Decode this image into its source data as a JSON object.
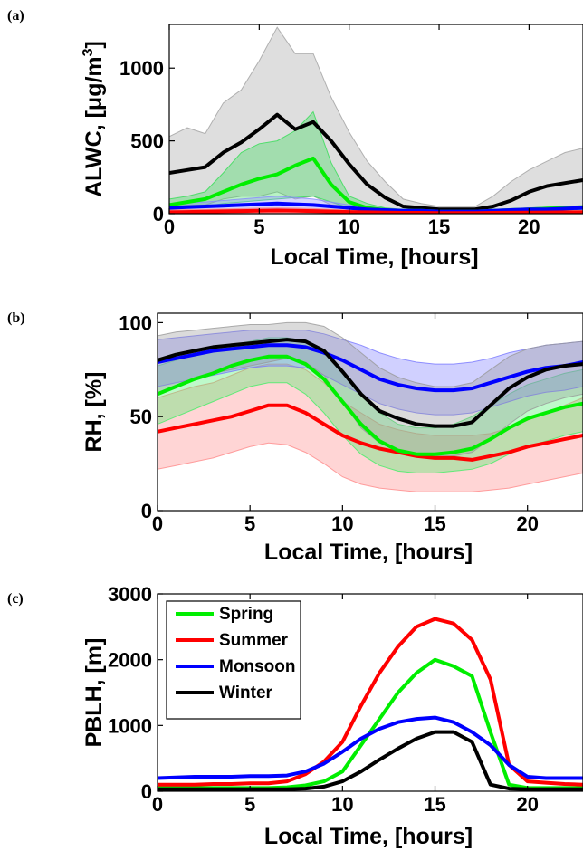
{
  "chart_data": [
    {
      "type": "line",
      "panel_label": "(a)",
      "xlabel": "Local Time, [hours]",
      "ylabel": "ALWC, [μg/m³]",
      "ylabel_main": "ALWC, [μg/m",
      "ylabel_sup": "3",
      "ylabel_end": "]",
      "xlim": [
        0,
        23
      ],
      "ylim": [
        0,
        1300
      ],
      "xticks": [
        0,
        5,
        10,
        15,
        20
      ],
      "yticks": [
        0,
        500,
        1000
      ],
      "grid": false,
      "series": [
        {
          "color": "#000000",
          "band_color": "#a0a0a0",
          "x": [
            0,
            1,
            2,
            3,
            4,
            5,
            6,
            7,
            8,
            9,
            10,
            11,
            12,
            13,
            14,
            15,
            16,
            17,
            18,
            19,
            20,
            21,
            22,
            23
          ],
          "values": [
            280,
            300,
            320,
            420,
            490,
            580,
            680,
            580,
            630,
            500,
            340,
            200,
            110,
            50,
            40,
            30,
            30,
            30,
            50,
            90,
            150,
            190,
            210,
            230
          ],
          "upper": [
            530,
            590,
            550,
            760,
            850,
            1050,
            1280,
            1100,
            1100,
            800,
            560,
            360,
            220,
            100,
            70,
            50,
            50,
            50,
            120,
            220,
            300,
            360,
            420,
            450
          ],
          "lower": [
            60,
            60,
            60,
            100,
            120,
            120,
            150,
            100,
            120,
            60,
            30,
            20,
            10,
            10,
            10,
            5,
            5,
            5,
            10,
            10,
            20,
            30,
            40,
            50
          ]
        },
        {
          "color": "#00ee00",
          "band_color": "#33dd55",
          "x": [
            0,
            1,
            2,
            3,
            4,
            5,
            6,
            7,
            8,
            9,
            10,
            11,
            12,
            13,
            14,
            15,
            16,
            17,
            18,
            19,
            20,
            21,
            22,
            23
          ],
          "values": [
            60,
            80,
            100,
            150,
            200,
            240,
            270,
            330,
            380,
            200,
            80,
            40,
            25,
            20,
            20,
            15,
            15,
            15,
            20,
            25,
            30,
            35,
            40,
            45
          ],
          "upper": [
            100,
            120,
            150,
            280,
            420,
            480,
            500,
            570,
            700,
            350,
            120,
            70,
            40,
            30,
            30,
            25,
            25,
            25,
            30,
            35,
            40,
            45,
            50,
            55
          ],
          "lower": [
            30,
            40,
            50,
            70,
            80,
            90,
            100,
            110,
            120,
            80,
            40,
            20,
            15,
            10,
            10,
            10,
            10,
            10,
            10,
            15,
            15,
            20,
            25,
            30
          ]
        },
        {
          "color": "#0000ff",
          "band_color": "#8888ff",
          "x": [
            0,
            1,
            2,
            3,
            4,
            5,
            6,
            7,
            8,
            9,
            10,
            11,
            12,
            13,
            14,
            15,
            16,
            17,
            18,
            19,
            20,
            21,
            22,
            23
          ],
          "values": [
            40,
            45,
            50,
            55,
            60,
            65,
            70,
            65,
            60,
            50,
            40,
            30,
            25,
            20,
            20,
            15,
            15,
            15,
            20,
            25,
            30,
            30,
            35,
            40
          ],
          "upper": [
            70,
            75,
            80,
            90,
            100,
            110,
            120,
            110,
            100,
            80,
            60,
            45,
            35,
            30,
            30,
            25,
            25,
            25,
            30,
            35,
            40,
            45,
            50,
            55
          ],
          "lower": [
            15,
            20,
            25,
            25,
            30,
            30,
            35,
            30,
            30,
            25,
            20,
            15,
            10,
            10,
            10,
            8,
            8,
            8,
            10,
            10,
            15,
            15,
            15,
            20
          ]
        },
        {
          "color": "#ff0000",
          "band_color": "#ff8888",
          "x": [
            0,
            1,
            2,
            3,
            4,
            5,
            6,
            7,
            8,
            9,
            10,
            11,
            12,
            13,
            14,
            15,
            16,
            17,
            18,
            19,
            20,
            21,
            22,
            23
          ],
          "values": [
            10,
            12,
            14,
            16,
            18,
            20,
            22,
            20,
            18,
            15,
            12,
            10,
            8,
            6,
            6,
            5,
            5,
            5,
            6,
            7,
            8,
            9,
            10,
            10
          ],
          "upper": [
            25,
            28,
            30,
            32,
            35,
            38,
            40,
            38,
            35,
            30,
            25,
            20,
            16,
            12,
            12,
            10,
            10,
            10,
            12,
            14,
            16,
            18,
            20,
            22
          ],
          "lower": [
            2,
            2,
            2,
            3,
            3,
            3,
            4,
            3,
            3,
            2,
            2,
            2,
            1,
            1,
            1,
            1,
            1,
            1,
            1,
            1,
            1,
            1,
            2,
            2
          ]
        }
      ]
    },
    {
      "type": "line",
      "panel_label": "(b)",
      "xlabel": "Local Time, [hours]",
      "ylabel": "RH, [%]",
      "xlim": [
        0,
        23
      ],
      "ylim": [
        0,
        105
      ],
      "xticks": [
        0,
        5,
        10,
        15,
        20
      ],
      "yticks": [
        0,
        50,
        100
      ],
      "grid": false,
      "series": [
        {
          "color": "#ff0000",
          "band_color": "#ff8888",
          "x": [
            0,
            1,
            2,
            3,
            4,
            5,
            6,
            7,
            8,
            9,
            10,
            11,
            12,
            13,
            14,
            15,
            16,
            17,
            18,
            19,
            20,
            21,
            22,
            23
          ],
          "values": [
            42,
            44,
            46,
            48,
            50,
            53,
            56,
            56,
            52,
            46,
            40,
            36,
            33,
            31,
            29,
            28,
            28,
            27,
            29,
            31,
            34,
            36,
            38,
            40
          ],
          "upper": [
            60,
            63,
            66,
            68,
            72,
            76,
            78,
            78,
            75,
            68,
            58,
            52,
            46,
            43,
            41,
            40,
            40,
            40,
            41,
            44,
            48,
            52,
            56,
            60
          ],
          "lower": [
            22,
            24,
            26,
            28,
            31,
            34,
            36,
            35,
            31,
            25,
            18,
            14,
            12,
            11,
            10,
            10,
            10,
            10,
            11,
            12,
            14,
            16,
            18,
            20
          ]
        },
        {
          "color": "#00ee00",
          "band_color": "#44ee66",
          "x": [
            0,
            1,
            2,
            3,
            4,
            5,
            6,
            7,
            8,
            9,
            10,
            11,
            12,
            13,
            14,
            15,
            16,
            17,
            18,
            19,
            20,
            21,
            22,
            23
          ],
          "values": [
            62,
            66,
            70,
            73,
            77,
            80,
            82,
            82,
            78,
            70,
            58,
            46,
            37,
            32,
            30,
            30,
            31,
            33,
            38,
            44,
            49,
            52,
            55,
            57
          ],
          "upper": [
            77,
            80,
            83,
            86,
            88,
            90,
            92,
            92,
            90,
            84,
            74,
            62,
            52,
            46,
            44,
            44,
            46,
            50,
            56,
            62,
            67,
            70,
            73,
            75
          ],
          "lower": [
            46,
            50,
            54,
            58,
            62,
            66,
            68,
            68,
            62,
            52,
            40,
            30,
            24,
            21,
            20,
            20,
            21,
            22,
            25,
            30,
            34,
            37,
            40,
            42
          ]
        },
        {
          "color": "#0000ff",
          "band_color": "#7777ff",
          "x": [
            0,
            1,
            2,
            3,
            4,
            5,
            6,
            7,
            8,
            9,
            10,
            11,
            12,
            13,
            14,
            15,
            16,
            17,
            18,
            19,
            20,
            21,
            22,
            23
          ],
          "values": [
            79,
            81,
            83,
            85,
            86,
            87,
            88,
            88,
            87,
            84,
            80,
            75,
            70,
            67,
            65,
            64,
            64,
            65,
            68,
            71,
            74,
            76,
            77,
            79
          ],
          "upper": [
            91,
            92,
            93,
            94,
            95,
            96,
            96,
            96,
            96,
            94,
            91,
            88,
            84,
            81,
            79,
            78,
            78,
            79,
            81,
            84,
            86,
            88,
            89,
            90
          ],
          "lower": [
            66,
            68,
            70,
            72,
            74,
            76,
            77,
            77,
            76,
            72,
            67,
            62,
            57,
            54,
            52,
            51,
            51,
            52,
            55,
            58,
            61,
            63,
            64,
            66
          ]
        },
        {
          "color": "#000000",
          "band_color": "#999999",
          "x": [
            0,
            1,
            2,
            3,
            4,
            5,
            6,
            7,
            8,
            9,
            10,
            11,
            12,
            13,
            14,
            15,
            16,
            17,
            18,
            19,
            20,
            21,
            22,
            23
          ],
          "values": [
            80,
            83,
            85,
            87,
            88,
            89,
            90,
            91,
            90,
            85,
            74,
            62,
            53,
            49,
            46,
            45,
            45,
            47,
            56,
            65,
            71,
            75,
            77,
            78
          ],
          "upper": [
            93,
            95,
            96,
            97,
            98,
            99,
            99,
            100,
            100,
            98,
            92,
            84,
            76,
            71,
            68,
            66,
            66,
            68,
            75,
            82,
            86,
            88,
            89,
            90
          ],
          "lower": [
            62,
            66,
            70,
            73,
            75,
            77,
            79,
            81,
            79,
            72,
            58,
            44,
            36,
            32,
            30,
            29,
            29,
            31,
            38,
            46,
            53,
            57,
            60,
            62
          ]
        }
      ]
    },
    {
      "type": "line",
      "panel_label": "(c)",
      "xlabel": "Local Time, [hours]",
      "ylabel": "PBLH, [m]",
      "xlim": [
        0,
        23
      ],
      "ylim": [
        0,
        3000
      ],
      "xticks": [
        0,
        5,
        10,
        15,
        20
      ],
      "yticks": [
        0,
        1000,
        2000,
        3000
      ],
      "grid": false,
      "legend": {
        "position": "top-left"
      },
      "series": [
        {
          "name": "Spring",
          "color": "#00ee00",
          "x": [
            0,
            1,
            2,
            3,
            4,
            5,
            6,
            7,
            8,
            9,
            10,
            11,
            12,
            13,
            14,
            15,
            16,
            17,
            18,
            19,
            20,
            21,
            22,
            23
          ],
          "values": [
            50,
            50,
            50,
            50,
            50,
            50,
            50,
            60,
            90,
            150,
            300,
            700,
            1100,
            1500,
            1800,
            2000,
            1900,
            1750,
            900,
            100,
            50,
            50,
            50,
            50
          ]
        },
        {
          "name": "Summer",
          "color": "#ff0000",
          "x": [
            0,
            1,
            2,
            3,
            4,
            5,
            6,
            7,
            8,
            9,
            10,
            11,
            12,
            13,
            14,
            15,
            16,
            17,
            18,
            19,
            20,
            21,
            22,
            23
          ],
          "values": [
            100,
            100,
            100,
            110,
            110,
            120,
            120,
            150,
            260,
            450,
            750,
            1300,
            1800,
            2200,
            2500,
            2620,
            2550,
            2300,
            1700,
            400,
            150,
            130,
            110,
            100
          ]
        },
        {
          "name": "Monsoon",
          "color": "#0000ff",
          "x": [
            0,
            1,
            2,
            3,
            4,
            5,
            6,
            7,
            8,
            9,
            10,
            11,
            12,
            13,
            14,
            15,
            16,
            17,
            18,
            19,
            20,
            21,
            22,
            23
          ],
          "values": [
            200,
            210,
            220,
            220,
            220,
            230,
            230,
            240,
            300,
            420,
            600,
            800,
            950,
            1050,
            1100,
            1120,
            1050,
            900,
            700,
            400,
            220,
            200,
            200,
            200
          ]
        },
        {
          "name": "Winter",
          "color": "#000000",
          "x": [
            0,
            1,
            2,
            3,
            4,
            5,
            6,
            7,
            8,
            9,
            10,
            11,
            12,
            13,
            14,
            15,
            16,
            17,
            18,
            19,
            20,
            21,
            22,
            23
          ],
          "values": [
            30,
            30,
            30,
            30,
            30,
            30,
            30,
            30,
            40,
            70,
            150,
            300,
            480,
            650,
            800,
            900,
            900,
            750,
            100,
            40,
            30,
            30,
            30,
            30
          ]
        }
      ]
    }
  ]
}
